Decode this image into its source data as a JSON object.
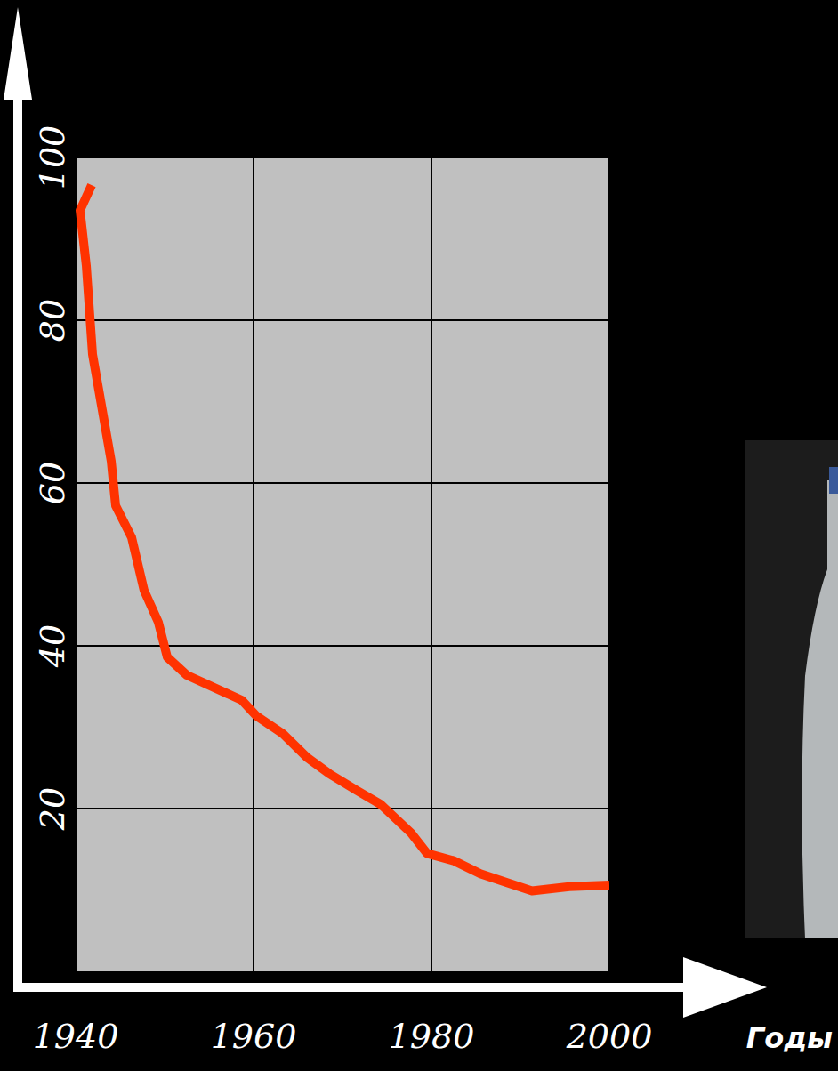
{
  "chart_data": {
    "type": "line",
    "x_label": "Годы",
    "x": [
      1941.8,
      1940.5,
      1941.2,
      1941.9,
      1944.0,
      1944.5,
      1946.3,
      1947.7,
      1949.3,
      1950.3,
      1952.5,
      1958.7,
      1960.3,
      1963.3,
      1966.0,
      1968.5,
      1971.5,
      1974.3,
      1977.7,
      1979.5,
      1982.5,
      1985.5,
      1988.5,
      1991.3,
      1995.5,
      2000.0
    ],
    "values": [
      96.6,
      93.5,
      86.7,
      75.8,
      62.7,
      57.2,
      53.3,
      46.8,
      42.9,
      38.6,
      36.4,
      33.3,
      31.4,
      29.2,
      26.3,
      24.3,
      22.3,
      20.5,
      17.0,
      14.5,
      13.6,
      12.0,
      10.9,
      9.9,
      10.4,
      10.6
    ],
    "color": "#ff3300",
    "xlim": [
      1940,
      2000
    ],
    "xticks": [
      1940,
      1960,
      1980,
      2000
    ],
    "ylim": [
      0,
      100
    ],
    "yticks": [
      20,
      40,
      60,
      80,
      100
    ],
    "grid": true
  }
}
